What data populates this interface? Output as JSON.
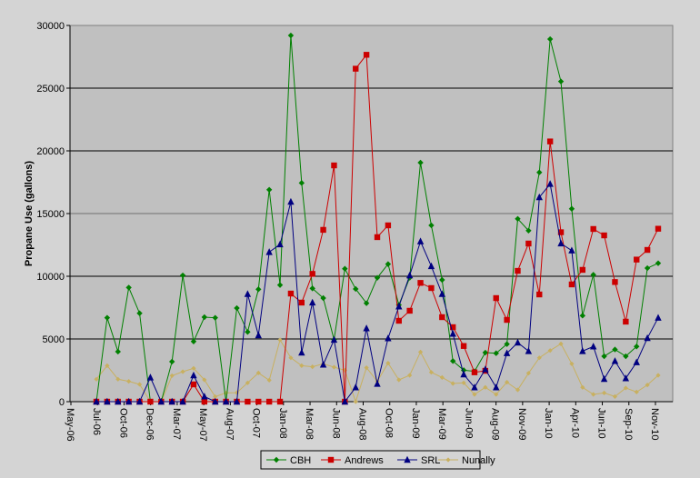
{
  "chart_data": {
    "type": "line",
    "title": "",
    "xlabel": "",
    "ylabel": "Propane Use (gallons)",
    "ylim": [
      0,
      30000
    ],
    "yticks": [
      "0",
      "5000",
      "10000",
      "15000",
      "20000",
      "25000",
      "30000"
    ],
    "xtick_labels": [
      "May-06",
      "Jul-06",
      "Oct-06",
      "Dec-06",
      "Mar-07",
      "May-07",
      "Aug-07",
      "Oct-07",
      "Jan-08",
      "Mar-08",
      "Jun-08",
      "Aug-08",
      "Oct-08",
      "Jan-09",
      "Mar-09",
      "Jun-09",
      "Aug-09",
      "Nov-09",
      "Jan-10",
      "Apr-10",
      "Jun-10",
      "Sep-10",
      "Nov-10"
    ],
    "grid": true,
    "legend_placement": "bottom",
    "x": [
      "Jul-06",
      "Aug-06",
      "Sep-06",
      "Oct-06",
      "Nov-06",
      "Dec-06",
      "Jan-07",
      "Feb-07",
      "Mar-07",
      "Apr-07",
      "May-07",
      "Jun-07",
      "Jul-07",
      "Aug-07",
      "Sep-07",
      "Oct-07",
      "Nov-07",
      "Dec-07",
      "Jan-08",
      "Feb-08",
      "Mar-08",
      "Apr-08",
      "May-08",
      "Jun-08",
      "Jul-08",
      "Aug-08",
      "Sep-08",
      "Oct-08",
      "Nov-08",
      "Dec-08",
      "Jan-09",
      "Feb-09",
      "Mar-09",
      "Apr-09",
      "May-09",
      "Jun-09",
      "Jul-09",
      "Aug-09",
      "Sep-09",
      "Oct-09",
      "Nov-09",
      "Dec-09",
      "Jan-10",
      "Feb-10",
      "Mar-10",
      "Apr-10",
      "May-10",
      "Jun-10",
      "Jul-10",
      "Aug-10",
      "Sep-10",
      "Oct-10",
      "Nov-10"
    ],
    "series": [
      {
        "name": "CBH",
        "color": "#008000",
        "marker": "diamond",
        "values": [
          0,
          6690,
          3990,
          9100,
          7050,
          0,
          0,
          3190,
          10070,
          4800,
          6740,
          6690,
          0,
          7460,
          5560,
          8960,
          16900,
          9300,
          29200,
          17440,
          9030,
          8260,
          4950,
          10600,
          8990,
          7850,
          9880,
          10970,
          7710,
          9880,
          19060,
          14060,
          9710,
          3240,
          2510,
          2420,
          3910,
          3860,
          4590,
          14580,
          13640,
          18280,
          28910,
          25530,
          15380,
          6860,
          10120,
          3620,
          4160,
          3620,
          4400,
          10650,
          11040
        ]
      },
      {
        "name": "Andrews",
        "color": "#cc0000",
        "marker": "square",
        "values": [
          0,
          0,
          0,
          0,
          0,
          0,
          0,
          0,
          0,
          1380,
          0,
          0,
          0,
          0,
          0,
          0,
          0,
          0,
          8620,
          7900,
          10190,
          13700,
          18840,
          0,
          26550,
          27660,
          13120,
          14060,
          6450,
          7250,
          9470,
          9060,
          6740,
          5940,
          4440,
          2340,
          2460,
          8260,
          6520,
          10430,
          12610,
          8550,
          20750,
          13510,
          9350,
          10510,
          13770,
          13260,
          9540,
          6380,
          11330,
          12100,
          13790
        ]
      },
      {
        "name": "SRL",
        "color": "#000080",
        "marker": "triangle",
        "values": [
          0,
          0,
          0,
          0,
          0,
          1930,
          0,
          0,
          0,
          2100,
          410,
          0,
          0,
          0,
          8580,
          5290,
          11930,
          12540,
          15940,
          3910,
          7900,
          2950,
          4930,
          0,
          1140,
          5850,
          1420,
          5050,
          7590,
          10070,
          12780,
          10800,
          8580,
          5410,
          2170,
          1140,
          2580,
          1140,
          3860,
          4710,
          4030,
          16300,
          17360,
          12610,
          12050,
          4030,
          4400,
          1810,
          3240,
          1860,
          3140,
          5070,
          6690
        ]
      },
      {
        "name": "Nunally",
        "color": "#c8b060",
        "marker": "diamond",
        "values": [
          1790,
          2870,
          1790,
          1620,
          1380,
          0,
          0,
          2070,
          2390,
          2660,
          1740,
          400,
          700,
          720,
          1500,
          2290,
          1710,
          4930,
          3500,
          2870,
          2780,
          3020,
          2750,
          2510,
          0,
          2710,
          1620,
          3070,
          1740,
          2100,
          3960,
          2340,
          1930,
          1450,
          1500,
          580,
          1140,
          580,
          1550,
          940,
          2270,
          3500,
          4080,
          4610,
          3020,
          1140,
          580,
          700,
          410,
          1090,
          770,
          1330,
          2100
        ]
      }
    ]
  }
}
